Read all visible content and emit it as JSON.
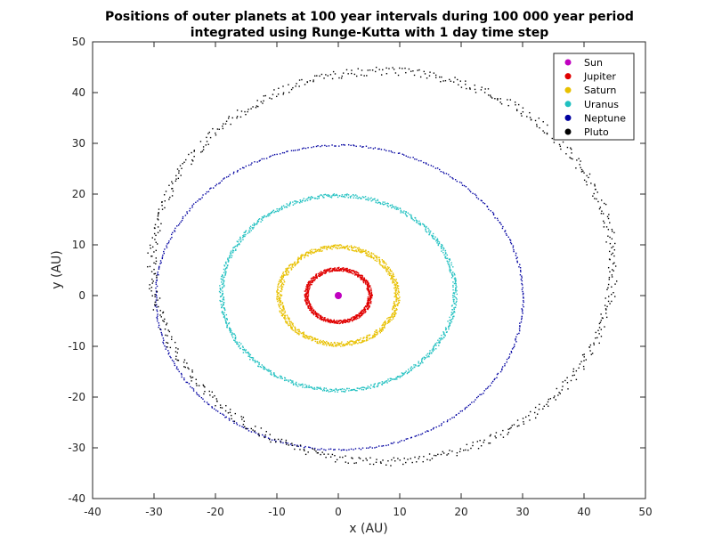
{
  "chart_data": {
    "type": "scatter",
    "title_line1": "Positions of outer planets at 100 year intervals during 100 000 year period",
    "title_line2": "integrated using Runge-Kutta with 1 day time step",
    "xlabel": "x (AU)",
    "ylabel": "y (AU)",
    "xlim": [
      -40,
      50
    ],
    "ylim": [
      -40,
      50
    ],
    "x_ticks": [
      "-40",
      "-30",
      "-20",
      "-10",
      "0",
      "10",
      "20",
      "30",
      "40",
      "50"
    ],
    "y_ticks": [
      "-40",
      "-30",
      "-20",
      "-10",
      "0",
      "10",
      "20",
      "30",
      "40",
      "50"
    ],
    "grid": false,
    "legend_position": "top-right",
    "series": [
      {
        "name": "Sun",
        "color": "#c000c0",
        "orbit": {
          "cx": 0,
          "cy": 0,
          "rx": 0,
          "ry": 0
        }
      },
      {
        "name": "Jupiter",
        "color": "#e00000",
        "orbit": {
          "cx": 0,
          "cy": 0,
          "rx": 5.2,
          "ry": 5.2
        }
      },
      {
        "name": "Saturn",
        "color": "#e8c000",
        "orbit": {
          "cx": 0,
          "cy": 0,
          "rx": 9.6,
          "ry": 9.6
        }
      },
      {
        "name": "Uranus",
        "color": "#20c0c0",
        "orbit": {
          "cx": 0,
          "cy": 0.5,
          "rx": 19.0,
          "ry": 19.2
        }
      },
      {
        "name": "Neptune",
        "color": "#0000a0",
        "orbit": {
          "cx": 0.2,
          "cy": -0.4,
          "rx": 29.9,
          "ry": 30.0
        }
      },
      {
        "name": "Pluto",
        "color": "#000000",
        "orbit": {
          "cx": 7.2,
          "cy": 5.7,
          "rx": 37.5,
          "ry": 38.5
        }
      }
    ]
  }
}
